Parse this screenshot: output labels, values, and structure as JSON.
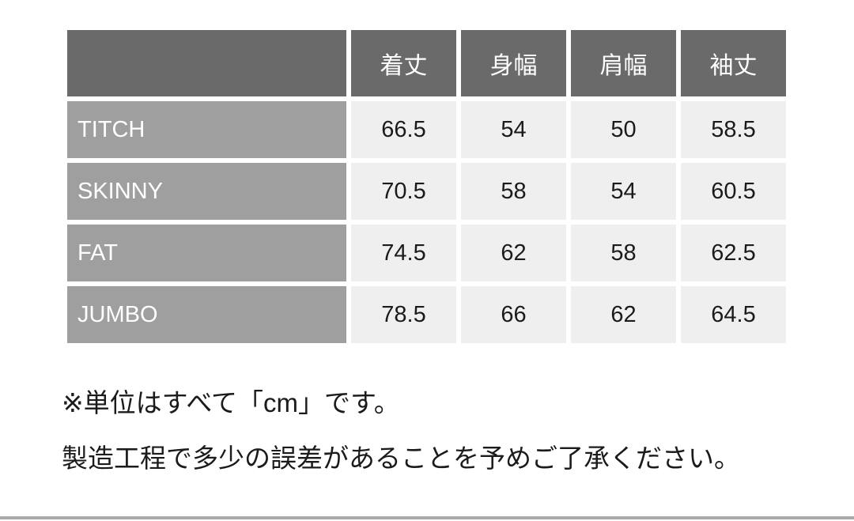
{
  "table": {
    "columns": [
      "着丈",
      "身幅",
      "肩幅",
      "袖丈"
    ],
    "rows": [
      {
        "label": "TITCH",
        "values": [
          "66.5",
          "54",
          "50",
          "58.5"
        ]
      },
      {
        "label": "SKINNY",
        "values": [
          "70.5",
          "58",
          "54",
          "60.5"
        ]
      },
      {
        "label": "FAT",
        "values": [
          "74.5",
          "62",
          "58",
          "62.5"
        ]
      },
      {
        "label": "JUMBO",
        "values": [
          "78.5",
          "66",
          "62",
          "64.5"
        ]
      }
    ]
  },
  "notes": {
    "unit_note": "※単位はすべて「cm」です。",
    "tolerance_note": "製造工程で多少の誤差があることを予めご了承ください。"
  },
  "colors": {
    "header_bg": "#6a6a6a",
    "row_label_bg": "#9f9f9f",
    "cell_bg": "#efefef",
    "header_text": "#ffffff",
    "body_text": "#1b1b1b",
    "bottom_rule": "#aaaaaa"
  }
}
